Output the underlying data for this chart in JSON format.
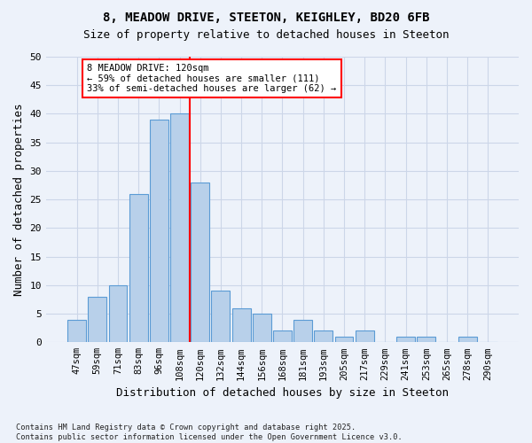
{
  "title_line1": "8, MEADOW DRIVE, STEETON, KEIGHLEY, BD20 6FB",
  "title_line2": "Size of property relative to detached houses in Steeton",
  "xlabel": "Distribution of detached houses by size in Steeton",
  "ylabel": "Number of detached properties",
  "footer": "Contains HM Land Registry data © Crown copyright and database right 2025.\nContains public sector information licensed under the Open Government Licence v3.0.",
  "bins": [
    "47sqm",
    "59sqm",
    "71sqm",
    "83sqm",
    "96sqm",
    "108sqm",
    "120sqm",
    "132sqm",
    "144sqm",
    "156sqm",
    "168sqm",
    "181sqm",
    "193sqm",
    "205sqm",
    "217sqm",
    "229sqm",
    "241sqm",
    "253sqm",
    "265sqm",
    "278sqm",
    "290sqm"
  ],
  "values": [
    4,
    8,
    10,
    26,
    39,
    40,
    28,
    9,
    6,
    5,
    2,
    4,
    2,
    1,
    2,
    0,
    1,
    1,
    0,
    1,
    0
  ],
  "bar_color": "#b8d0ea",
  "bar_edge_color": "#5b9bd5",
  "grid_color": "#ccd6e8",
  "vline_color": "red",
  "annotation_text": "8 MEADOW DRIVE: 120sqm\n← 59% of detached houses are smaller (111)\n33% of semi-detached houses are larger (62) →",
  "annotation_box_color": "white",
  "annotation_box_edge": "red",
  "ylim": [
    0,
    50
  ],
  "yticks": [
    0,
    5,
    10,
    15,
    20,
    25,
    30,
    35,
    40,
    45,
    50
  ],
  "background_color": "#edf2fa"
}
